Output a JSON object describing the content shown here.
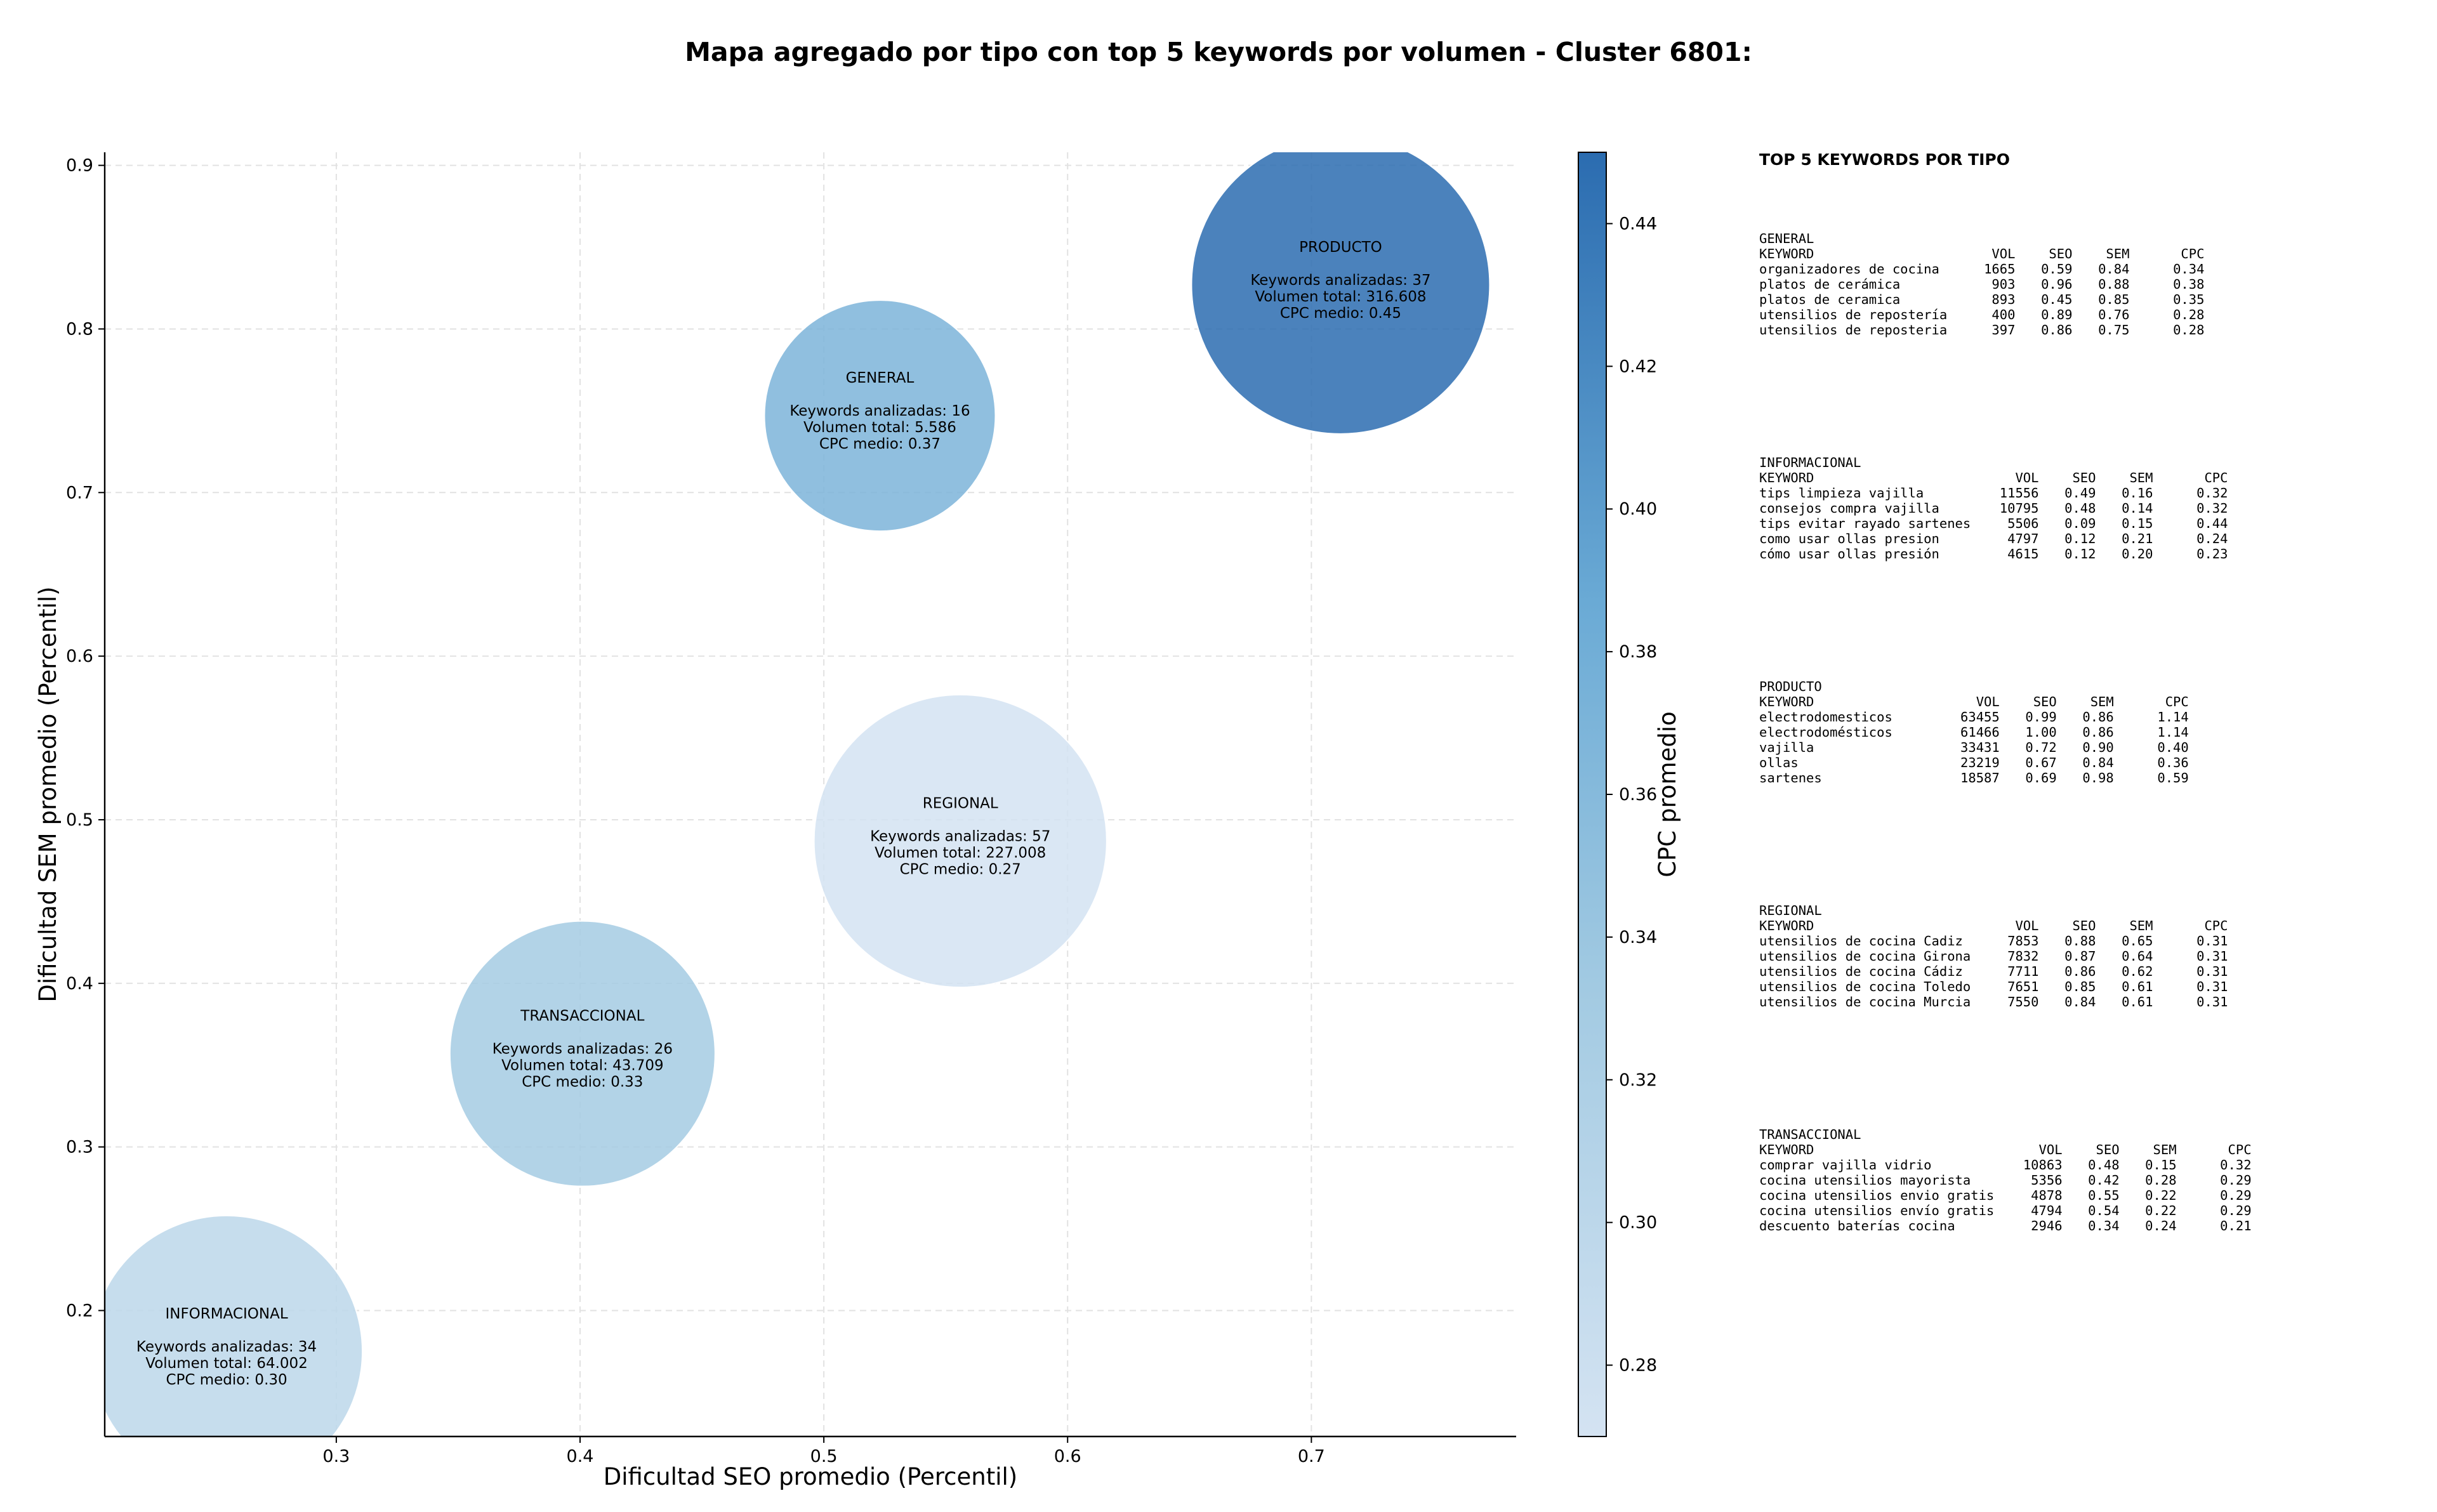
{
  "title": "Mapa agregado por tipo con top 5 keywords por volumen - Cluster 6801:",
  "chart_data": {
    "type": "scatter",
    "xlabel": "Dificultad SEO promedio (Percentil)",
    "ylabel": "Dificultad SEM promedio (Percentil)",
    "xlim": [
      0.205,
      0.784
    ],
    "ylim": [
      0.123,
      0.908
    ],
    "xticks": [
      0.3,
      0.4,
      0.5,
      0.6,
      0.7
    ],
    "yticks": [
      0.2,
      0.3,
      0.4,
      0.5,
      0.6,
      0.7,
      0.8,
      0.9
    ],
    "grid": true,
    "colorbar": {
      "label": "CPC promedio",
      "range": [
        0.27,
        0.45
      ],
      "ticks": [
        0.28,
        0.3,
        0.32,
        0.34,
        0.36,
        0.38,
        0.4,
        0.42,
        0.44
      ],
      "color_low": "#d4e3f2",
      "color_high": "#2b6cb0"
    },
    "bubble_size_encodes": "Volumen total",
    "points": [
      {
        "label": "GENERAL",
        "x": 0.523,
        "y": 0.747,
        "keywords": 16,
        "volume": 5586,
        "cpc": 0.37,
        "lines": [
          "Keywords analizadas: 16",
          "Volumen total: 5.586",
          "CPC medio: 0.37"
        ]
      },
      {
        "label": "PRODUCTO",
        "x": 0.712,
        "y": 0.827,
        "keywords": 37,
        "volume": 316608,
        "cpc": 0.45,
        "lines": [
          "Keywords analizadas: 37",
          "Volumen total: 316.608",
          "CPC medio: 0.45"
        ]
      },
      {
        "label": "REGIONAL",
        "x": 0.556,
        "y": 0.487,
        "keywords": 57,
        "volume": 227008,
        "cpc": 0.27,
        "lines": [
          "Keywords analizadas: 57",
          "Volumen total: 227.008",
          "CPC medio: 0.27"
        ]
      },
      {
        "label": "TRANSACCIONAL",
        "x": 0.401,
        "y": 0.357,
        "keywords": 26,
        "volume": 43709,
        "cpc": 0.33,
        "lines": [
          "Keywords analizadas: 26",
          "Volumen total: 43.709",
          "CPC medio: 0.33"
        ]
      },
      {
        "label": "INFORMACIONAL",
        "x": 0.255,
        "y": 0.175,
        "keywords": 34,
        "volume": 64002,
        "cpc": 0.3,
        "lines": [
          "Keywords analizadas: 34",
          "Volumen total: 64.002",
          "CPC medio: 0.30"
        ]
      }
    ]
  },
  "panel": {
    "title": "TOP 5 KEYWORDS POR TIPO",
    "headers": [
      "KEYWORD",
      "VOL",
      "SEO",
      "SEM",
      "CPC"
    ],
    "groups": [
      {
        "name": "GENERAL",
        "rows": [
          [
            "organizadores de cocina",
            "1665",
            "0.59",
            "0.84",
            "0.34"
          ],
          [
            "platos de cerámica",
            "903",
            "0.96",
            "0.88",
            "0.38"
          ],
          [
            "platos de ceramica",
            "893",
            "0.45",
            "0.85",
            "0.35"
          ],
          [
            "utensilios de repostería",
            "400",
            "0.89",
            "0.76",
            "0.28"
          ],
          [
            "utensilios de reposteria",
            "397",
            "0.86",
            "0.75",
            "0.28"
          ]
        ]
      },
      {
        "name": "INFORMACIONAL",
        "rows": [
          [
            "tips limpieza vajilla",
            "11556",
            "0.49",
            "0.16",
            "0.32"
          ],
          [
            "consejos compra vajilla",
            "10795",
            "0.48",
            "0.14",
            "0.32"
          ],
          [
            "tips evitar rayado sartenes",
            "5506",
            "0.09",
            "0.15",
            "0.44"
          ],
          [
            "como usar ollas presion",
            "4797",
            "0.12",
            "0.21",
            "0.24"
          ],
          [
            "cómo usar ollas presión",
            "4615",
            "0.12",
            "0.20",
            "0.23"
          ]
        ]
      },
      {
        "name": "PRODUCTO",
        "rows": [
          [
            "electrodomesticos",
            "63455",
            "0.99",
            "0.86",
            "1.14"
          ],
          [
            "electrodomésticos",
            "61466",
            "1.00",
            "0.86",
            "1.14"
          ],
          [
            "vajilla",
            "33431",
            "0.72",
            "0.90",
            "0.40"
          ],
          [
            "ollas",
            "23219",
            "0.67",
            "0.84",
            "0.36"
          ],
          [
            "sartenes",
            "18587",
            "0.69",
            "0.98",
            "0.59"
          ]
        ]
      },
      {
        "name": "REGIONAL",
        "rows": [
          [
            "utensilios de cocina Cadiz",
            "7853",
            "0.88",
            "0.65",
            "0.31"
          ],
          [
            "utensilios de cocina Girona",
            "7832",
            "0.87",
            "0.64",
            "0.31"
          ],
          [
            "utensilios de cocina Cádiz",
            "7711",
            "0.86",
            "0.62",
            "0.31"
          ],
          [
            "utensilios de cocina Toledo",
            "7651",
            "0.85",
            "0.61",
            "0.31"
          ],
          [
            "utensilios de cocina Murcia",
            "7550",
            "0.84",
            "0.61",
            "0.31"
          ]
        ]
      },
      {
        "name": "TRANSACCIONAL",
        "rows": [
          [
            "comprar vajilla vidrio",
            "10863",
            "0.48",
            "0.15",
            "0.32"
          ],
          [
            "cocina utensilios mayorista",
            "5356",
            "0.42",
            "0.28",
            "0.29"
          ],
          [
            "cocina utensilios envio gratis",
            "4878",
            "0.55",
            "0.22",
            "0.29"
          ],
          [
            "cocina utensilios envío gratis",
            "4794",
            "0.54",
            "0.22",
            "0.29"
          ],
          [
            "descuento baterías cocina",
            "2946",
            "0.34",
            "0.24",
            "0.21"
          ]
        ]
      }
    ]
  }
}
